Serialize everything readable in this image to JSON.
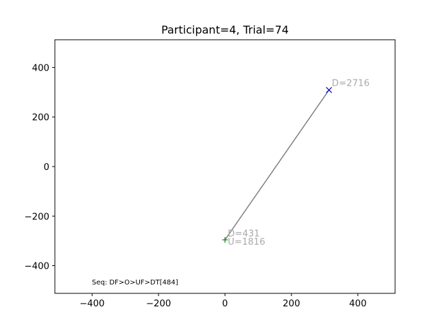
{
  "chart_data": {
    "type": "line",
    "title": "Participant=4, Trial=74",
    "xlabel": "",
    "ylabel": "",
    "xlim": [
      -512,
      512
    ],
    "ylim": [
      -512,
      512
    ],
    "xticks": [
      -400,
      -200,
      0,
      200,
      400
    ],
    "yticks": [
      -400,
      -200,
      0,
      200,
      400
    ],
    "xtick_labels": [
      "−400",
      "−200",
      "0",
      "200",
      "400"
    ],
    "ytick_labels": [
      "−400",
      "−200",
      "0",
      "200",
      "400"
    ],
    "grid": false,
    "series": [
      {
        "x": [
          0,
          313
        ],
        "y": [
          -296,
          309
        ],
        "color": "#808080"
      }
    ],
    "markers": [
      {
        "x": 0,
        "y": -296,
        "symbol": "+",
        "color": "#008000"
      },
      {
        "x": 313,
        "y": 309,
        "symbol": "x",
        "color": "#0000cc"
      }
    ],
    "annotations": [
      {
        "text": "D=2716",
        "x": 313,
        "y": 309
      },
      {
        "text": "D=431",
        "x": 0,
        "y": -296
      },
      {
        "text": "U=1816",
        "x": 0,
        "y": -296
      }
    ],
    "footnote": "Seq: DF>O>UF>DT[484]"
  }
}
